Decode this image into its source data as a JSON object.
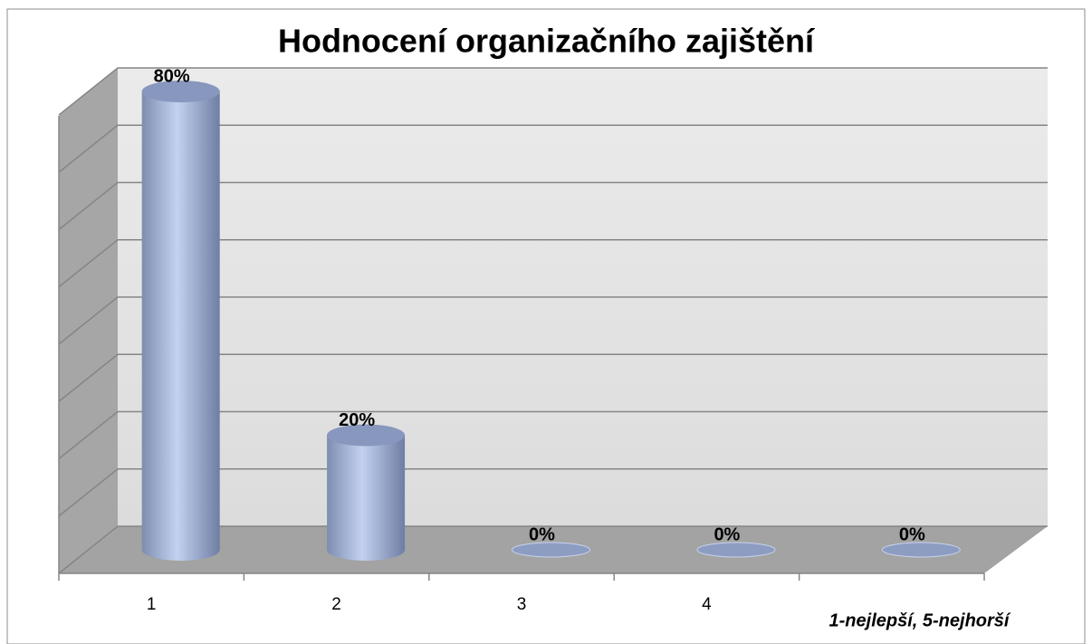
{
  "chart_data": {
    "type": "bar3d",
    "title": "Hodnocení organizačního zajištění",
    "categories": [
      "1",
      "2",
      "3",
      "4",
      null
    ],
    "values": [
      80,
      20,
      0,
      0,
      0
    ],
    "value_labels": [
      "80%",
      "20%",
      "0%",
      "0%",
      "0%"
    ],
    "color": "#a9b9dc",
    "ylim": [
      0,
      80
    ],
    "yticks": [
      0,
      10,
      20,
      30,
      40,
      50,
      60,
      70,
      80
    ],
    "grid": true,
    "annotation": "1-nejlepší, 5-nejhorší"
  }
}
